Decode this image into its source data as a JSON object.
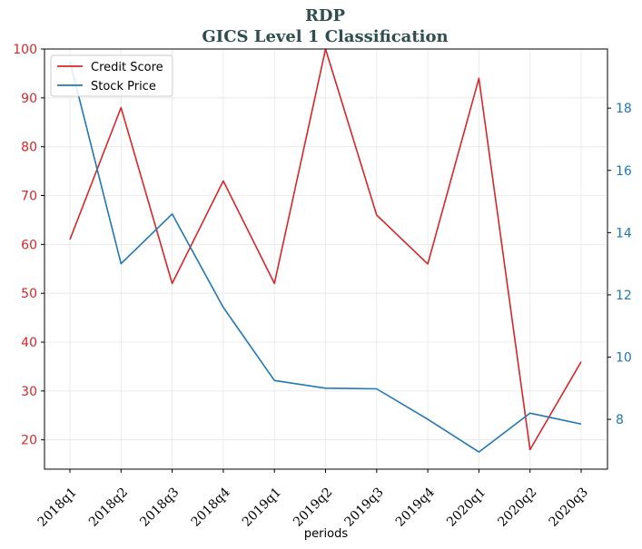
{
  "chart_data": {
    "type": "line",
    "title": "RDP",
    "subtitle": "GICS Level 1 Classification",
    "xlabel": "periods",
    "categories": [
      "2018q1",
      "2018q2",
      "2018q3",
      "2018q4",
      "2019q1",
      "2019q2",
      "2019q3",
      "2019q4",
      "2020q1",
      "2020q2",
      "2020q3"
    ],
    "y_left": {
      "ylim": [
        14,
        100
      ],
      "ticks": [
        20,
        30,
        40,
        50,
        60,
        70,
        80,
        90,
        100
      ]
    },
    "y_right": {
      "ylim": [
        6.4,
        19.9
      ],
      "ticks": [
        8,
        10,
        12,
        14,
        16,
        18
      ]
    },
    "grid": true,
    "legend": "top-left",
    "series": [
      {
        "name": "Credit Score",
        "axis": "left",
        "color": "#d62728",
        "values": [
          61,
          88,
          52,
          73,
          52,
          100,
          66,
          56,
          94,
          18,
          36
        ]
      },
      {
        "name": "Stock Price",
        "axis": "right",
        "color": "#1f77b4",
        "values": [
          19.5,
          13.0,
          14.6,
          11.6,
          9.25,
          9.0,
          8.98,
          8.0,
          6.95,
          8.2,
          7.85
        ]
      }
    ]
  }
}
